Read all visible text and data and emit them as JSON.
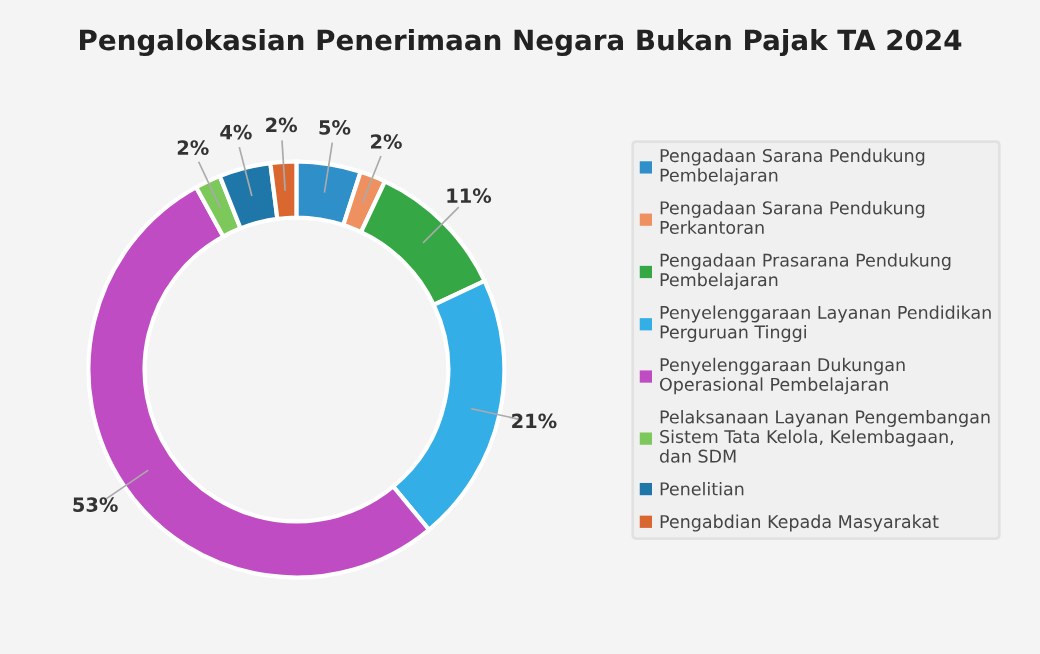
{
  "chart_data": {
    "type": "donut",
    "title": "Pengalokasian Penerimaan Negara Bukan Pajak TA 2024",
    "categories": [
      "Pengadaan Sarana Pendukung Pembelajaran",
      "Pengadaan Sarana Pendukung Perkantoran",
      "Pengadaan Prasarana Pendukung Pembelajaran",
      "Penyelenggaraan Layanan Pendidikan Perguruan Tinggi",
      "Penyelenggaraan Dukungan Operasional Pembelajaran",
      "Pelaksanaan Layanan Pengembangan Sistem Tata Kelola, Kelembagaan, dan SDM",
      "Penelitian",
      "Pengabdian Kepada Masyarakat"
    ],
    "values": [
      5,
      2,
      11,
      21,
      53,
      2,
      4,
      2
    ],
    "value_labels": [
      "5%",
      "2%",
      "11%",
      "21%",
      "53%",
      "2%",
      "4%",
      "2%"
    ],
    "colors": [
      "#2f8fc9",
      "#ee9060",
      "#35a845",
      "#33aee6",
      "#c04cc4",
      "#7cc85a",
      "#1f76a8",
      "#d9672f"
    ],
    "legend": "right"
  }
}
